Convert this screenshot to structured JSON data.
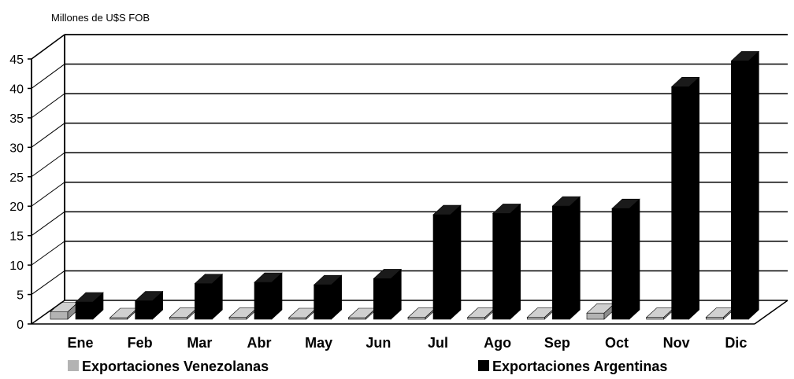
{
  "chart_data": {
    "type": "bar",
    "unit_label": "Millones de U$S FOB",
    "categories": [
      "Ene",
      "Feb",
      "Mar",
      "Abr",
      "May",
      "Jun",
      "Jul",
      "Ago",
      "Sep",
      "Oct",
      "Nov",
      "Dic"
    ],
    "y_ticks": [
      "0",
      "5",
      "10",
      "15",
      "20",
      "25",
      "30",
      "35",
      "40",
      "45"
    ],
    "ylim": [
      0,
      45
    ],
    "grid": true,
    "three_d": true,
    "legend_position": "bottom",
    "series": [
      {
        "name": "Exportaciones Venezolanas",
        "color": "#b3b3b3",
        "values": [
          1.2,
          0.2,
          0.3,
          0.3,
          0.2,
          0.2,
          0.3,
          0.3,
          0.3,
          1.0,
          0.3,
          0.3
        ]
      },
      {
        "name": "Exportaciones Argentinas",
        "color": "#000000",
        "values": [
          2.8,
          3.0,
          5.8,
          6.0,
          5.6,
          6.6,
          17.0,
          17.2,
          18.4,
          18.0,
          37.8,
          42.0
        ]
      }
    ]
  }
}
